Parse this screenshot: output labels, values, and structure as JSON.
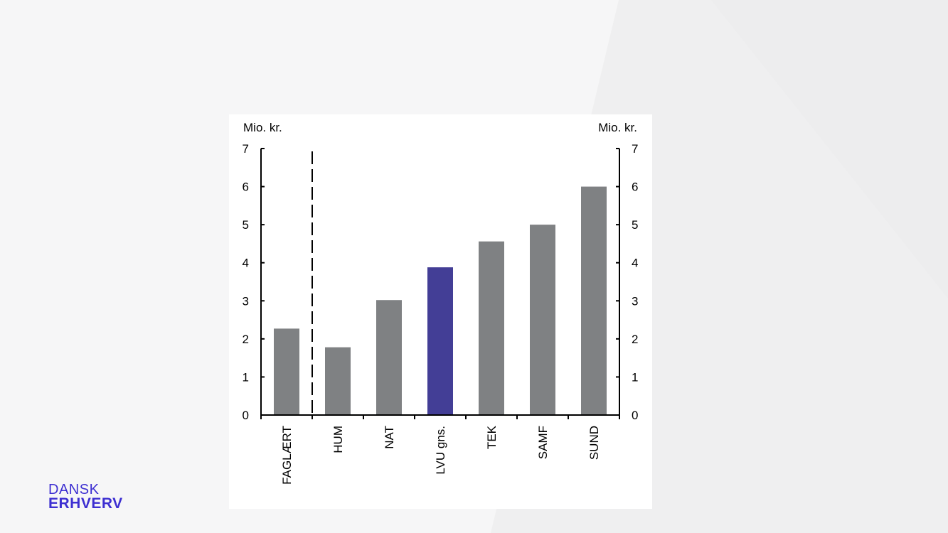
{
  "logo": {
    "line1": "DANSK",
    "line2": "ERHVERV",
    "color": "#3d2fd1"
  },
  "chart_data": {
    "type": "bar",
    "categories": [
      "FAGLÆRT",
      "HUM",
      "NAT",
      "LVU gns.",
      "TEK",
      "SAMF",
      "SUND"
    ],
    "values": [
      2.27,
      1.78,
      3.02,
      3.88,
      4.56,
      5.0,
      6.0
    ],
    "highlight_category": "LVU gns.",
    "colors": {
      "bar": "#7f8183",
      "highlight": "#433e96",
      "axis": "#000000"
    },
    "ylabel_left": "Mio. kr.",
    "ylabel_right": "Mio. kr.",
    "ylim": [
      0,
      7
    ],
    "yticks": [
      "0",
      "1",
      "2",
      "3",
      "4",
      "5",
      "6",
      "7"
    ],
    "separator_after_category": "FAGLÆRT",
    "separator_style": "dashed",
    "grid": false,
    "legend": "none"
  }
}
